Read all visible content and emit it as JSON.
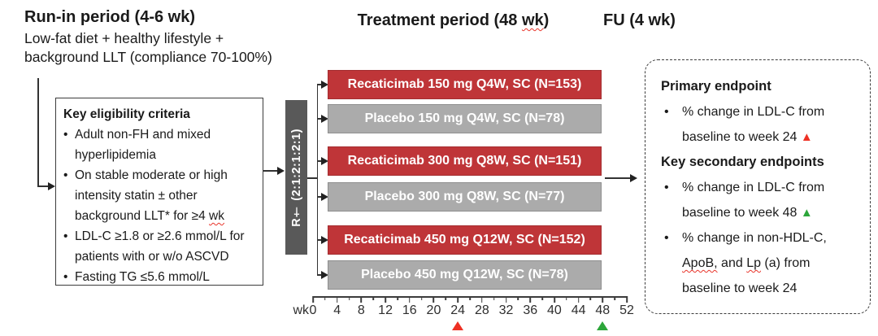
{
  "colors": {
    "arm_red": "#bf3538",
    "arm_gray": "#ababab",
    "randomization_bar": "#595959",
    "marker_red": "#ee3124",
    "marker_green": "#2ca63a",
    "squiggle_red": "#e8352b"
  },
  "run_in": {
    "title": "Run-in period (4-6 wk)",
    "line1": "Low-fat diet + healthy lifestyle +",
    "line2": "background LLT (compliance 70-100%)"
  },
  "treatment": {
    "title_pre": "Treatment period (48 ",
    "title_wavy": "wk",
    "title_post": ")"
  },
  "followup": {
    "title": "FU (4 wk)"
  },
  "eligibility": {
    "bullet": "•",
    "title": "Key eligibility criteria",
    "b1l1": "Adult non-FH and mixed",
    "b1l2": "hyperlipidemia",
    "b2l1": "On stable moderate or high",
    "b2l2": "intensity statin ± other",
    "b2l3_pre": "background LLT* for ≥4 ",
    "b2l3_wavy": "wk",
    "b3l1": "LDL-C ≥1.8 or ≥2.6 mmol/L for",
    "b3l2": "patients with or w/o ASCVD",
    "b4l1": "Fasting TG ≤5.6 mmol/L"
  },
  "randomization": {
    "label": "R† (2:1:2:1:2:1)"
  },
  "arms": [
    {
      "label": "Recaticimab 150 mg Q4W, SC (N=153)",
      "color": "red"
    },
    {
      "label": "Placebo 150 mg Q4W, SC (N=78)",
      "color": "gray"
    },
    {
      "label": "Recaticimab 300 mg Q8W, SC (N=151)",
      "color": "red"
    },
    {
      "label": "Placebo 300 mg Q8W, SC (N=77)",
      "color": "gray"
    },
    {
      "label": "Recaticimab 450 mg Q12W, SC (N=152)",
      "color": "red"
    },
    {
      "label": "Placebo 450 mg Q12W, SC (N=78)",
      "color": "gray"
    }
  ],
  "axis": {
    "unit": "wk",
    "range": [
      0,
      52
    ],
    "minor_interval": 2,
    "major_interval": 4,
    "major_tick_labels": [
      0,
      4,
      8,
      12,
      16,
      20,
      24,
      28,
      32,
      36,
      40,
      44,
      48,
      52
    ],
    "markers": [
      {
        "week": 24,
        "color": "#ee3124",
        "name": "primary-endpoint-marker"
      },
      {
        "week": 48,
        "color": "#2ca63a",
        "name": "secondary-endpoint-marker"
      }
    ]
  },
  "endpoints": {
    "bullet": "•",
    "marker_up": "▲",
    "primary_heading": "Primary endpoint",
    "primary_l1": "% change in LDL-C from",
    "primary_l2": "baseline to week 24 ",
    "secondary_heading": "Key secondary endpoints",
    "sec1_l1": "% change in LDL-C from",
    "sec1_l2": "baseline to week 48 ",
    "sec2_l1": "% change in non-HDL-C,",
    "sec2_l2a": "ApoB,",
    "sec2_l2b": " and ",
    "sec2_l2c": "Lp",
    "sec2_l2d": " (a) from",
    "sec2_l3": "baseline to week 24"
  }
}
